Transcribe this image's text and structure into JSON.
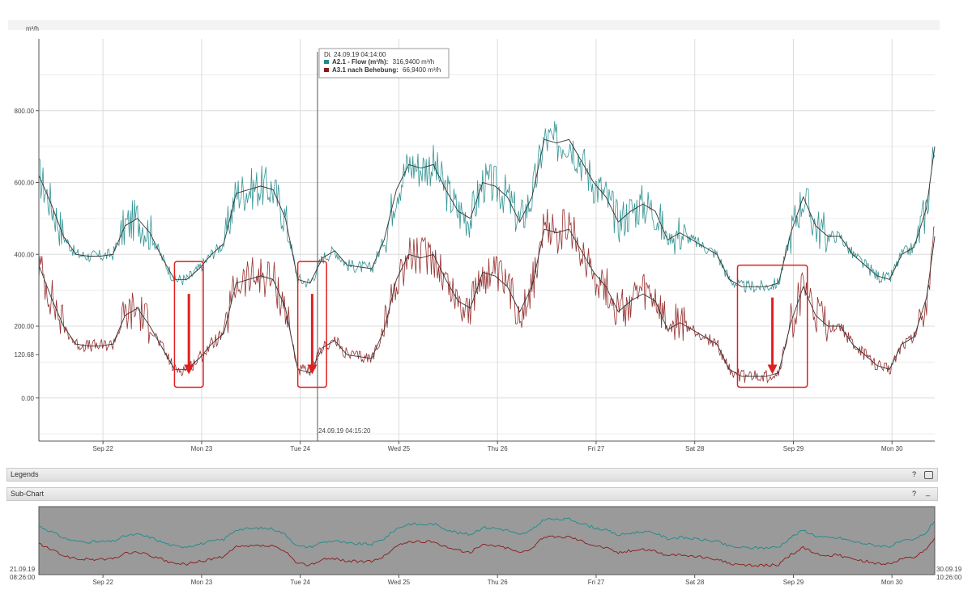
{
  "unit_label": "m³/h",
  "tooltip": {
    "title": "Di. 24.09.19 04:14:00",
    "rows": [
      {
        "series": "A2.1 - Flow (m³/h):",
        "value": "316,9400 m³/h",
        "color": "#1e8a8a"
      },
      {
        "series": "A3.1 nach Behebung:",
        "value": "66,9400 m³/h",
        "color": "#8b1a1a"
      }
    ]
  },
  "crosshair_label": "24.09.19 04:15:20",
  "panels": {
    "legends": "Legends",
    "subchart": "Sub-Chart",
    "help_icon": "?",
    "minimize_icon": "_"
  },
  "subchart_range": {
    "start_date": "21.09.19",
    "start_time": "08:26:00",
    "end_date": "30.09.19",
    "end_time": "10:26:00"
  },
  "chart_data": {
    "type": "line",
    "ylabel": "m³/h",
    "yticks": [
      800.0,
      600.0,
      400.0,
      200.0,
      120.68,
      0.0
    ],
    "ytick_labels": [
      "800.00",
      "600.00",
      "400.00",
      "200.00",
      "120.68",
      "0.00"
    ],
    "ylim": [
      -120,
      1000
    ],
    "xlim": [
      "2019-09-21 08:26",
      "2019-09-30 10:26"
    ],
    "xtick_labels": [
      "Sep 22",
      "Mon 23",
      "Tue 24",
      "Wed 25",
      "Thu 26",
      "Fri 27",
      "Sat 28",
      "Sep 29",
      "Mon 30"
    ],
    "x_unit": "hours since 2019-09-21 08:26",
    "grid": true,
    "series": [
      {
        "name": "A2.1 - Flow (m³/h)",
        "color": "#1e8a8a",
        "x": [
          0,
          3,
          6,
          9,
          12,
          15,
          18,
          21,
          24,
          27,
          30,
          33,
          36,
          39,
          42,
          45,
          48,
          51,
          54,
          57,
          60,
          63,
          66,
          69,
          72,
          75,
          78,
          81,
          84,
          87,
          90,
          93,
          96,
          99,
          102,
          105,
          108,
          111,
          114,
          117,
          120,
          123,
          126,
          129,
          132,
          135,
          138,
          141,
          144,
          147,
          150,
          153,
          156,
          159,
          162,
          165,
          168,
          171,
          174,
          177,
          180,
          183,
          186,
          189,
          192,
          195,
          198,
          201,
          204,
          207,
          210,
          213,
          216,
          218
        ],
        "values": [
          620,
          540,
          450,
          400,
          395,
          395,
          400,
          480,
          500,
          460,
          390,
          330,
          330,
          360,
          400,
          430,
          570,
          580,
          590,
          580,
          500,
          330,
          320,
          390,
          410,
          370,
          365,
          360,
          440,
          580,
          650,
          640,
          650,
          580,
          520,
          500,
          600,
          590,
          560,
          490,
          560,
          720,
          710,
          720,
          660,
          600,
          560,
          490,
          520,
          540,
          520,
          440,
          460,
          440,
          420,
          400,
          330,
          310,
          310,
          310,
          320,
          460,
          560,
          480,
          450,
          450,
          400,
          370,
          340,
          330,
          400,
          420,
          530,
          700
        ]
      },
      {
        "name": "A3.1 nach Behebung",
        "color": "#8b1a1a",
        "x": [
          0,
          3,
          6,
          9,
          12,
          15,
          18,
          21,
          24,
          27,
          30,
          33,
          36,
          39,
          42,
          45,
          48,
          51,
          54,
          57,
          60,
          63,
          66,
          69,
          72,
          75,
          78,
          81,
          84,
          87,
          90,
          93,
          96,
          99,
          102,
          105,
          108,
          111,
          114,
          117,
          120,
          123,
          126,
          129,
          132,
          135,
          138,
          141,
          144,
          147,
          150,
          153,
          156,
          159,
          162,
          165,
          168,
          171,
          174,
          177,
          180,
          183,
          186,
          189,
          192,
          195,
          198,
          201,
          204,
          207,
          210,
          213,
          216,
          218
        ],
        "values": [
          370,
          280,
          200,
          150,
          145,
          145,
          150,
          230,
          250,
          200,
          140,
          80,
          80,
          110,
          150,
          180,
          320,
          330,
          340,
          330,
          250,
          80,
          70,
          140,
          160,
          120,
          115,
          110,
          190,
          330,
          400,
          390,
          400,
          330,
          270,
          250,
          350,
          340,
          310,
          240,
          310,
          470,
          460,
          470,
          410,
          350,
          310,
          240,
          270,
          290,
          270,
          190,
          210,
          190,
          170,
          150,
          80,
          60,
          60,
          60,
          70,
          210,
          310,
          230,
          200,
          200,
          150,
          120,
          90,
          80,
          150,
          170,
          280,
          450
        ]
      }
    ],
    "annotations": [
      {
        "type": "highlight-box",
        "x_range": [
          33,
          40
        ],
        "y_range": [
          30,
          380
        ],
        "arrow": "down"
      },
      {
        "type": "highlight-box",
        "x_range": [
          63,
          70
        ],
        "y_range": [
          30,
          380
        ],
        "arrow": "down"
      },
      {
        "type": "highlight-box",
        "x_range": [
          170,
          187
        ],
        "y_range": [
          30,
          370
        ],
        "arrow": "down"
      }
    ],
    "crosshair_x": 67.8
  }
}
